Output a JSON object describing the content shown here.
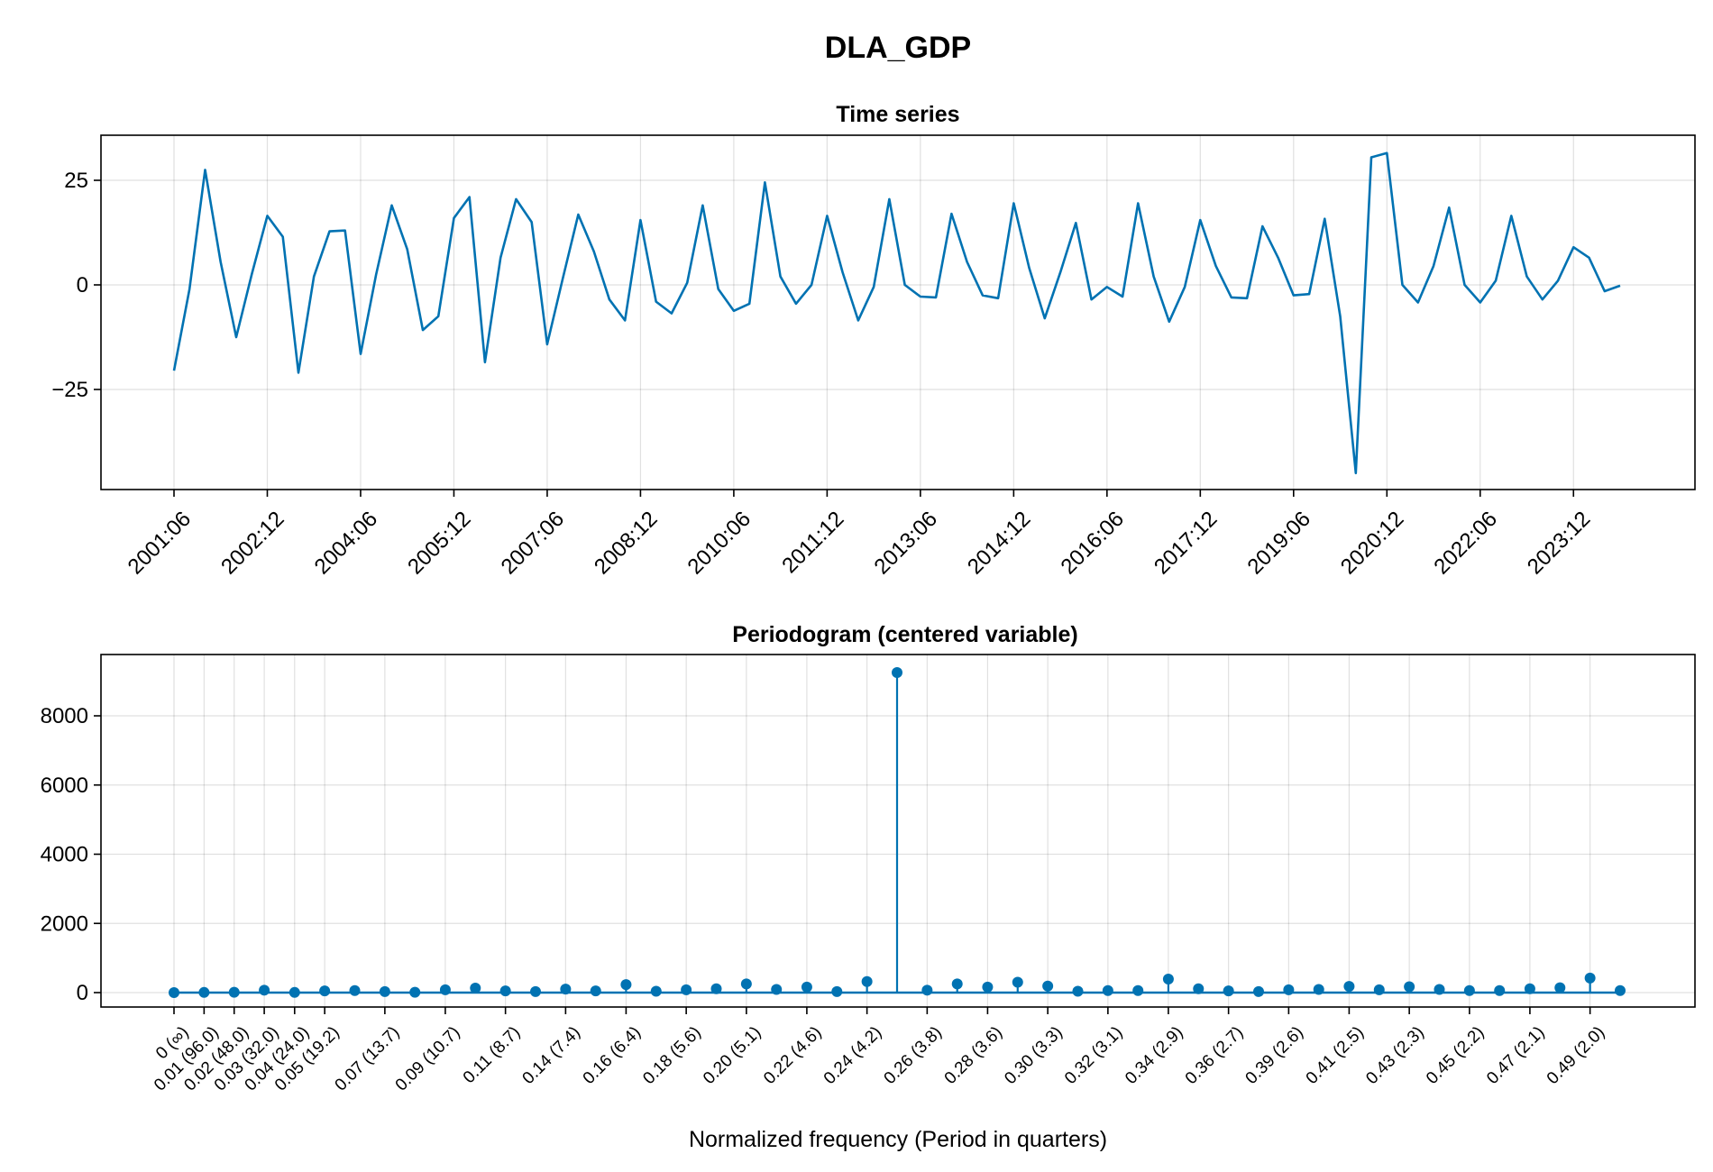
{
  "chart_data": [
    {
      "type": "line",
      "figure_title": "DLA_GDP",
      "title": "Time series",
      "xlabel": "",
      "ylabel": "",
      "x_ticklabels": [
        "2001:06",
        "2002:12",
        "2004:06",
        "2005:12",
        "2007:06",
        "2008:12",
        "2010:06",
        "2011:12",
        "2013:06",
        "2014:12",
        "2016:06",
        "2017:12",
        "2019:06",
        "2020:12",
        "2022:06",
        "2023:12"
      ],
      "y_ticks": [
        -25,
        0,
        25
      ],
      "y_ticklabels": [
        "−25",
        "0",
        "25"
      ],
      "ylim": [
        -49,
        36
      ],
      "grid": true,
      "start_period": "2001:06",
      "frequency": "quarterly",
      "series": [
        {
          "color": "#0072b2",
          "values": [
            -20.5,
            -1.0,
            27.5,
            5.5,
            -12.5,
            2.5,
            16.5,
            11.5,
            -21.0,
            2.0,
            12.8,
            13.0,
            -16.5,
            2.5,
            19.0,
            8.5,
            -10.8,
            -7.5,
            16.0,
            21.0,
            -18.5,
            6.5,
            20.5,
            15.0,
            -14.2,
            1.5,
            16.8,
            8.0,
            -3.5,
            -8.5,
            15.5,
            -4.0,
            -6.8,
            0.5,
            19.0,
            -1.0,
            -6.2,
            -4.5,
            24.5,
            2.0,
            -4.5,
            0.0,
            16.5,
            3.0,
            -8.5,
            -0.5,
            20.5,
            0.0,
            -2.8,
            -3.0,
            17.0,
            5.5,
            -2.5,
            -3.2,
            19.5,
            4.0,
            -8.0,
            3.0,
            14.8,
            -3.5,
            -0.5,
            -2.8,
            19.5,
            2.0,
            -8.8,
            -0.5,
            15.5,
            4.5,
            -3.0,
            -3.2,
            14.0,
            6.5,
            -2.5,
            -2.2,
            15.8,
            -7.5,
            -45.0,
            30.5,
            31.5,
            0.0,
            -4.2,
            4.5,
            18.5,
            0.0,
            -4.2,
            1.0,
            16.5,
            2.0,
            -3.5,
            1.0,
            9.0,
            6.5,
            -1.5,
            -0.2
          ]
        }
      ]
    },
    {
      "type": "stem",
      "title": "Periodogram (centered variable)",
      "xlabel": "Normalized frequency (Period in quarters)",
      "ylabel": "",
      "x": [
        0.0,
        0.0104,
        0.0208,
        0.0312,
        0.0417,
        0.0521,
        0.0625,
        0.0729,
        0.0833,
        0.0938,
        0.1042,
        0.1146,
        0.125,
        0.1354,
        0.1458,
        0.1563,
        0.1667,
        0.1771,
        0.1875,
        0.1979,
        0.2083,
        0.2188,
        0.2292,
        0.2396,
        0.25,
        0.2604,
        0.2708,
        0.2813,
        0.2917,
        0.3021,
        0.3125,
        0.3229,
        0.3333,
        0.3438,
        0.3542,
        0.3646,
        0.375,
        0.3854,
        0.3958,
        0.4063,
        0.4167,
        0.4271,
        0.4375,
        0.4479,
        0.4583,
        0.4688,
        0.4792,
        0.4896,
        0.5
      ],
      "x_ticks": [
        0.0,
        0.0104,
        0.0208,
        0.0312,
        0.0417,
        0.0521,
        0.0729,
        0.0938,
        0.1146,
        0.1354,
        0.1563,
        0.1771,
        0.1979,
        0.2188,
        0.2396,
        0.2604,
        0.2813,
        0.3021,
        0.3229,
        0.3438,
        0.3646,
        0.3854,
        0.4063,
        0.4271,
        0.4479,
        0.4688,
        0.4896
      ],
      "x_ticklabels": [
        "0 (∞)",
        "0.01 (96.0)",
        "0.02 (48.0)",
        "0.03 (32.0)",
        "0.04 (24.0)",
        "0.05 (19.2)",
        "0.07 (13.7)",
        "0.09 (10.7)",
        "0.11 (8.7)",
        "0.14 (7.4)",
        "0.16 (6.4)",
        "0.18 (5.6)",
        "0.20 (5.1)",
        "0.22 (4.6)",
        "0.24 (4.2)",
        "0.26 (3.8)",
        "0.28 (3.6)",
        "0.30 (3.3)",
        "0.32 (3.1)",
        "0.34 (2.9)",
        "0.36 (2.7)",
        "0.39 (2.6)",
        "0.41 (2.5)",
        "0.43 (2.3)",
        "0.45 (2.2)",
        "0.47 (2.1)",
        "0.49 (2.0)"
      ],
      "y_ticks": [
        0,
        2000,
        4000,
        6000,
        8000
      ],
      "y_ticklabels": [
        "0",
        "2000",
        "4000",
        "6000",
        "8000"
      ],
      "ylim": [
        -450,
        9720
      ],
      "xlim": [
        -0.025,
        0.525
      ],
      "grid": true,
      "series": [
        {
          "color": "#0072b2",
          "values": [
            0,
            5,
            10,
            70,
            5,
            50,
            60,
            30,
            10,
            80,
            130,
            50,
            30,
            100,
            50,
            230,
            40,
            80,
            110,
            250,
            90,
            160,
            30,
            320,
            9250,
            70,
            250,
            160,
            300,
            190,
            40,
            60,
            60,
            390,
            110,
            50,
            30,
            80,
            90,
            180,
            80,
            170,
            90,
            60,
            60,
            110,
            140,
            420,
            60
          ]
        }
      ]
    }
  ]
}
